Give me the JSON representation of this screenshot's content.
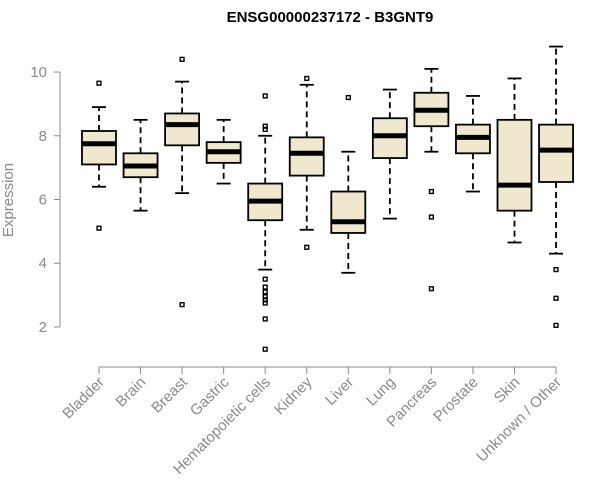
{
  "chart_data": {
    "type": "boxplot",
    "title": "ENSG00000237172 - B3GNT9",
    "xlabel": "",
    "ylabel": "Expression",
    "ylim": [
      0.9,
      11.1
    ],
    "yticks": [
      2,
      4,
      6,
      8,
      10
    ],
    "categories": [
      "Bladder",
      "Brain",
      "Breast",
      "Gastric",
      "Hematopoietic cells",
      "Kidney",
      "Liver",
      "Lung",
      "Pancreas",
      "Prostate",
      "Skin",
      "Unknown / Other"
    ],
    "boxes": [
      {
        "name": "Bladder",
        "whisker_low": 6.4,
        "q1": 7.1,
        "median": 7.75,
        "q3": 8.15,
        "whisker_high": 8.9,
        "outliers": [
          9.65,
          5.1
        ]
      },
      {
        "name": "Brain",
        "whisker_low": 5.65,
        "q1": 6.7,
        "median": 7.05,
        "q3": 7.45,
        "whisker_high": 8.5,
        "outliers": []
      },
      {
        "name": "Breast",
        "whisker_low": 6.2,
        "q1": 7.7,
        "median": 8.35,
        "q3": 8.7,
        "whisker_high": 9.7,
        "outliers": [
          10.4,
          2.7
        ]
      },
      {
        "name": "Gastric",
        "whisker_low": 6.5,
        "q1": 7.15,
        "median": 7.5,
        "q3": 7.8,
        "whisker_high": 8.5,
        "outliers": []
      },
      {
        "name": "Hematopoietic cells",
        "whisker_low": 3.8,
        "q1": 5.35,
        "median": 5.95,
        "q3": 6.5,
        "whisker_high": 8.0,
        "outliers": [
          9.25,
          8.3,
          8.2,
          3.5,
          3.25,
          3.1,
          2.95,
          2.85,
          2.75,
          2.25,
          1.3
        ]
      },
      {
        "name": "Kidney",
        "whisker_low": 5.05,
        "q1": 6.75,
        "median": 7.45,
        "q3": 7.95,
        "whisker_high": 9.6,
        "outliers": [
          9.8,
          4.5
        ]
      },
      {
        "name": "Liver",
        "whisker_low": 3.7,
        "q1": 4.95,
        "median": 5.3,
        "q3": 6.25,
        "whisker_high": 7.5,
        "outliers": [
          9.2
        ]
      },
      {
        "name": "Lung",
        "whisker_low": 5.4,
        "q1": 7.3,
        "median": 8.0,
        "q3": 8.55,
        "whisker_high": 9.45,
        "outliers": []
      },
      {
        "name": "Pancreas",
        "whisker_low": 7.5,
        "q1": 8.3,
        "median": 8.8,
        "q3": 9.35,
        "whisker_high": 10.1,
        "outliers": [
          6.25,
          5.45,
          3.2
        ]
      },
      {
        "name": "Prostate",
        "whisker_low": 6.25,
        "q1": 7.45,
        "median": 7.95,
        "q3": 8.35,
        "whisker_high": 9.25,
        "outliers": []
      },
      {
        "name": "Skin",
        "whisker_low": 4.65,
        "q1": 5.65,
        "median": 6.45,
        "q3": 8.5,
        "whisker_high": 9.8,
        "outliers": []
      },
      {
        "name": "Unknown / Other",
        "whisker_low": 4.3,
        "q1": 6.55,
        "median": 7.55,
        "q3": 8.35,
        "whisker_high": 10.8,
        "outliers": [
          3.8,
          2.9,
          2.05
        ]
      }
    ],
    "colors": {
      "box_fill": "#efe8cf",
      "box_stroke": "#000000",
      "axis": "#8a8a8a"
    }
  }
}
